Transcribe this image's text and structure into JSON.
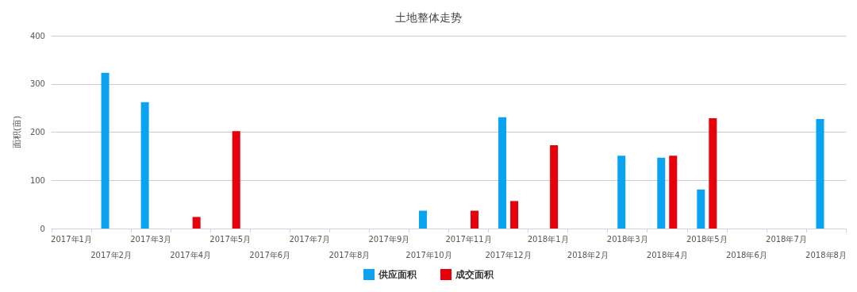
{
  "chart_data": {
    "type": "bar",
    "title": "土地整体走势",
    "ylabel": "面积(亩)",
    "categories": [
      "2017年1月",
      "2017年2月",
      "2017年3月",
      "2017年4月",
      "2017年5月",
      "2017年6月",
      "2017年7月",
      "2017年8月",
      "2017年9月",
      "2017年10月",
      "2017年11月",
      "2017年12月",
      "2018年1月",
      "2018年2月",
      "2018年3月",
      "2018年4月",
      "2018年5月",
      "2018年6月",
      "2018年7月",
      "2018年8月"
    ],
    "series": [
      {
        "name": "供应面积",
        "color": "#0aa3f0",
        "values": [
          null,
          323,
          262,
          null,
          null,
          null,
          null,
          null,
          null,
          37,
          null,
          231,
          null,
          null,
          151,
          147,
          81,
          null,
          null,
          227
        ]
      },
      {
        "name": "成交面积",
        "color": "#e8000b",
        "values": [
          null,
          null,
          null,
          24,
          202,
          null,
          null,
          null,
          null,
          null,
          37,
          57,
          173,
          null,
          null,
          151,
          229,
          null,
          null,
          null
        ]
      }
    ],
    "ylim": [
      0,
      400
    ],
    "yticks": [
      0,
      100,
      200,
      300,
      400
    ],
    "grid": "y",
    "legend": "bottom"
  }
}
